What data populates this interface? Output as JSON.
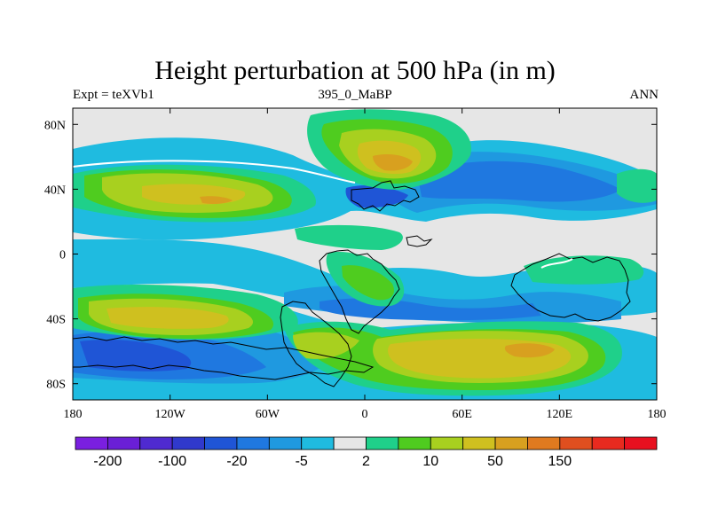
{
  "header": {
    "title": "Height perturbation at 500 hPa (in m)",
    "left_label": "Expt = teXVb1",
    "center_label": "395_0_MaBP",
    "right_label": "ANN"
  },
  "map": {
    "x_ticks": [
      {
        "lon": -180,
        "label": "180"
      },
      {
        "lon": -120,
        "label": "120W"
      },
      {
        "lon": -60,
        "label": "60W"
      },
      {
        "lon": 0,
        "label": "0"
      },
      {
        "lon": 60,
        "label": "60E"
      },
      {
        "lon": 120,
        "label": "120E"
      },
      {
        "lon": 180,
        "label": "180"
      }
    ],
    "y_ticks": [
      {
        "lat": 80,
        "label": "80N"
      },
      {
        "lat": 40,
        "label": "40N"
      },
      {
        "lat": 0,
        "label": "0"
      },
      {
        "lat": -40,
        "label": "40S"
      },
      {
        "lat": -80,
        "label": "80S"
      }
    ],
    "lon_range": [
      -180,
      180
    ],
    "lat_range": [
      -90,
      90
    ],
    "background_color": "#e6e6e6"
  },
  "colorbar": {
    "colors": [
      "#7a1fe0",
      "#6a1fd6",
      "#4f2ad0",
      "#3039cc",
      "#1f55d6",
      "#1f78e0",
      "#1f99e0",
      "#1fbbe0",
      "#e6e6e6",
      "#1fd08a",
      "#4fcc1f",
      "#a8d01f",
      "#cfc01f",
      "#d8a01f",
      "#e07a1f",
      "#e04f1f",
      "#e82a1f",
      "#e8101f"
    ],
    "labels": [
      {
        "boundary": 1,
        "text": "-200"
      },
      {
        "boundary": 3,
        "text": "-100"
      },
      {
        "boundary": 5,
        "text": "-20"
      },
      {
        "boundary": 7,
        "text": "-5"
      },
      {
        "boundary": 9,
        "text": "2"
      },
      {
        "boundary": 11,
        "text": "10"
      },
      {
        "boundary": 13,
        "text": "50"
      },
      {
        "boundary": 15,
        "text": "150"
      }
    ]
  }
}
